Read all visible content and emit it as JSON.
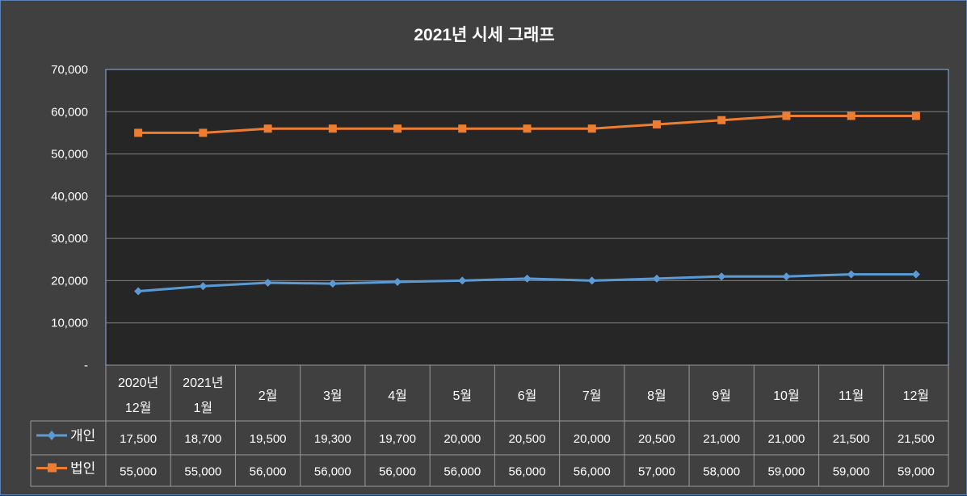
{
  "chart_data": {
    "type": "line",
    "title": "2021년 시세 그래프",
    "categories": [
      [
        "2020년",
        "12월"
      ],
      [
        "2021년",
        "1월"
      ],
      [
        "2월"
      ],
      [
        "3월"
      ],
      [
        "4월"
      ],
      [
        "5월"
      ],
      [
        "6월"
      ],
      [
        "7월"
      ],
      [
        "8월"
      ],
      [
        "9월"
      ],
      [
        "10월"
      ],
      [
        "11월"
      ],
      [
        "12월"
      ]
    ],
    "series": [
      {
        "name": "개인",
        "color": "#5b9bd5",
        "marker": "diamond",
        "values": [
          17500,
          18700,
          19500,
          19300,
          19700,
          20000,
          20500,
          20000,
          20500,
          21000,
          21000,
          21500,
          21500
        ],
        "value_labels": [
          "17,500",
          "18,700",
          "19,500",
          "19,300",
          "19,700",
          "20,000",
          "20,500",
          "20,000",
          "20,500",
          "21,000",
          "21,000",
          "21,500",
          "21,500"
        ]
      },
      {
        "name": "법인",
        "color": "#ed7d31",
        "marker": "square",
        "values": [
          55000,
          55000,
          56000,
          56000,
          56000,
          56000,
          56000,
          56000,
          57000,
          58000,
          59000,
          59000,
          59000
        ],
        "value_labels": [
          "55,000",
          "55,000",
          "56,000",
          "56,000",
          "56,000",
          "56,000",
          "56,000",
          "56,000",
          "57,000",
          "58,000",
          "59,000",
          "59,000",
          "59,000"
        ]
      }
    ],
    "ylim": [
      0,
      70000
    ],
    "yticks": [
      0,
      10000,
      20000,
      30000,
      40000,
      50000,
      60000,
      70000
    ],
    "ytick_labels": [
      "-",
      "10,000",
      "20,000",
      "30,000",
      "40,000",
      "50,000",
      "60,000",
      "70,000"
    ],
    "grid": true,
    "data_table": true,
    "plot_background": "#262626",
    "background": "#404040"
  }
}
